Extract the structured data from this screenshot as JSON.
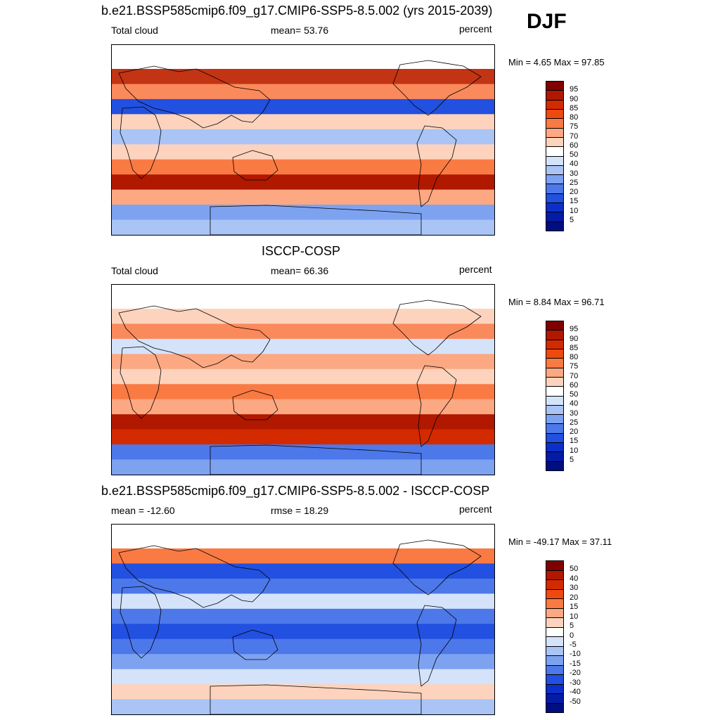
{
  "season": "DJF",
  "panels": [
    {
      "title": "b.e21.BSSP585cmip6.f09_g17.CMIP6-SSP5-8.5.002 (yrs 2015-2039)",
      "left_label": "Total cloud",
      "center_label": "mean=  53.76",
      "right_label": "percent",
      "minmax": "Min =   4.65 Max =  97.85",
      "colorbar": {
        "labels": [
          "95",
          "90",
          "85",
          "80",
          "75",
          "70",
          "60",
          "50",
          "40",
          "30",
          "25",
          "20",
          "15",
          "10",
          "5"
        ],
        "colors": [
          "#800000",
          "#b01800",
          "#d42a00",
          "#ee4a10",
          "#fa7a44",
          "#fca882",
          "#fdd3bd",
          "#ffffff",
          "#d4e3fa",
          "#a9c4f5",
          "#7da2f0",
          "#4d78ea",
          "#2250e0",
          "#0d2fc9",
          "#041ba6",
          "#000e80"
        ]
      }
    },
    {
      "title": "ISCCP-COSP",
      "left_label": "Total cloud",
      "center_label": "mean=  66.36",
      "right_label": "percent",
      "minmax": "Min =   8.84 Max =  96.71",
      "colorbar": {
        "labels": [
          "95",
          "90",
          "85",
          "80",
          "75",
          "70",
          "60",
          "50",
          "40",
          "30",
          "25",
          "20",
          "15",
          "10",
          "5"
        ],
        "colors": [
          "#800000",
          "#b01800",
          "#d42a00",
          "#ee4a10",
          "#fa7a44",
          "#fca882",
          "#fdd3bd",
          "#ffffff",
          "#d4e3fa",
          "#a9c4f5",
          "#7da2f0",
          "#4d78ea",
          "#2250e0",
          "#0d2fc9",
          "#041ba6",
          "#000e80"
        ]
      }
    },
    {
      "title": "b.e21.BSSP585cmip6.f09_g17.CMIP6-SSP5-8.5.002 - ISCCP-COSP",
      "left_label": "mean = -12.60",
      "center_label": "rmse =  18.29",
      "right_label": "percent",
      "minmax": "Min = -49.17 Max =  37.11",
      "colorbar": {
        "labels": [
          "50",
          "40",
          "30",
          "20",
          "15",
          "10",
          "5",
          "0",
          "-5",
          "-10",
          "-15",
          "-20",
          "-30",
          "-40",
          "-50"
        ],
        "colors": [
          "#800000",
          "#b01800",
          "#d42a00",
          "#ee4a10",
          "#fa7a44",
          "#fca882",
          "#fdd3bd",
          "#ffffff",
          "#d4e3fa",
          "#a9c4f5",
          "#7da2f0",
          "#4d78ea",
          "#2250e0",
          "#0d2fc9",
          "#041ba6",
          "#000e80"
        ]
      }
    }
  ],
  "map_bands": [
    {
      "rows": [
        "#ffffff",
        "#c23414",
        "#fa8a5c",
        "#2250e0",
        "#fdd3bd",
        "#a9c4f5",
        "#fdd3bd",
        "#fa7a44",
        "#b01800",
        "#fca882",
        "#7da2f0",
        "#a9c4f5"
      ]
    },
    {
      "rows": [
        "#ffffff",
        "#fdd3bd",
        "#fa8a5c",
        "#d4e3fa",
        "#fca882",
        "#fdd3bd",
        "#fa7a44",
        "#fca882",
        "#b01800",
        "#d42a00",
        "#4d78ea",
        "#7da2f0"
      ]
    },
    {
      "rows": [
        "#ffffff",
        "#fa7a44",
        "#2250e0",
        "#4d78ea",
        "#d4e3fa",
        "#4d78ea",
        "#2250e0",
        "#4d78ea",
        "#7da2f0",
        "#d4e3fa",
        "#fdd3bd",
        "#a9c4f5"
      ]
    }
  ]
}
